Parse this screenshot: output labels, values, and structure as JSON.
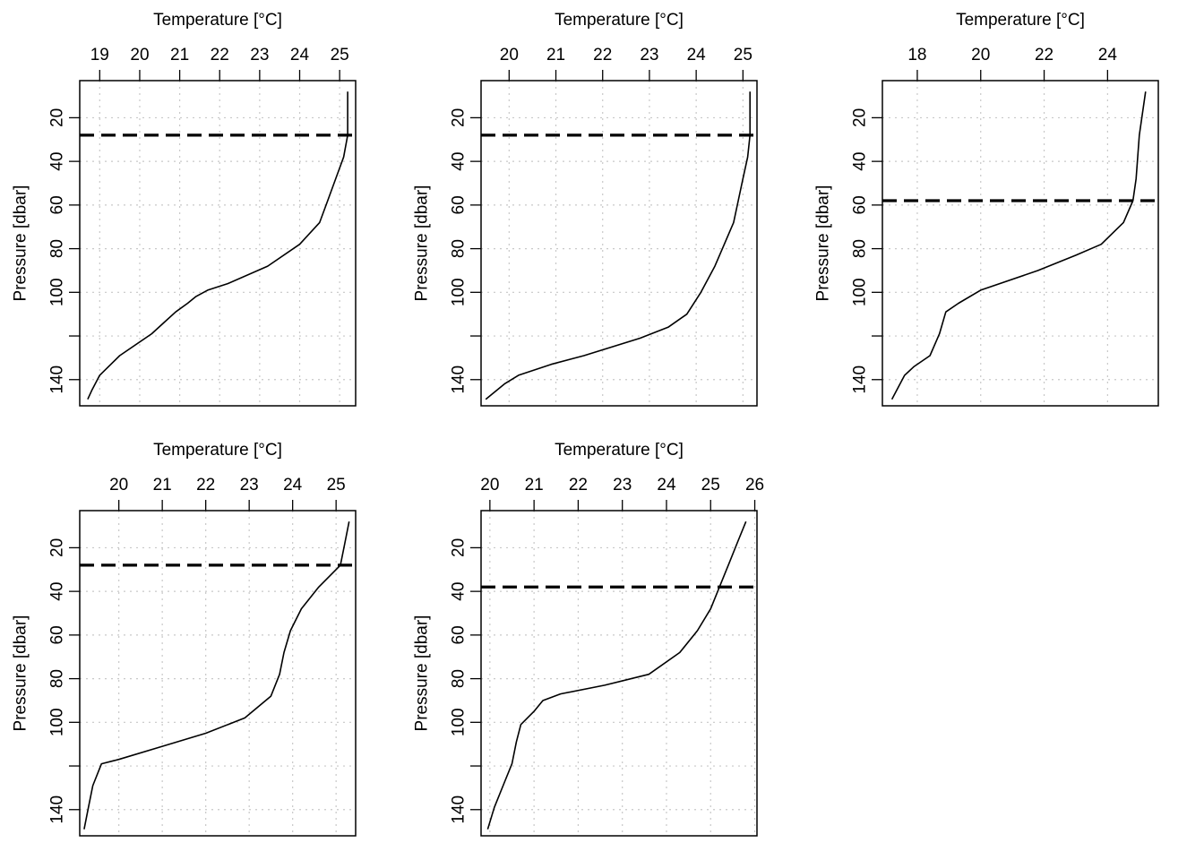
{
  "chart_data": [
    {
      "type": "line",
      "xlabel": "Temperature [°C]",
      "ylabel": "Pressure [dbar]",
      "xlim": [
        18.5,
        25.4
      ],
      "ylim": [
        152,
        3
      ],
      "xticks": [
        19,
        20,
        21,
        22,
        23,
        24,
        25
      ],
      "yticks": [
        20,
        40,
        60,
        80,
        100,
        140
      ],
      "ygrid": [
        20,
        40,
        60,
        80,
        100,
        120,
        140
      ],
      "grid": true,
      "mixed_layer_depth": 28,
      "profile": [
        [
          25.2,
          8
        ],
        [
          25.2,
          18
        ],
        [
          25.2,
          28
        ],
        [
          25.1,
          38
        ],
        [
          24.9,
          48
        ],
        [
          24.7,
          58
        ],
        [
          24.5,
          68
        ],
        [
          24.0,
          78
        ],
        [
          23.2,
          88
        ],
        [
          22.2,
          96
        ],
        [
          21.7,
          99
        ],
        [
          21.4,
          102
        ],
        [
          21.2,
          105
        ],
        [
          20.9,
          109
        ],
        [
          20.6,
          114
        ],
        [
          20.3,
          119
        ],
        [
          19.5,
          129
        ],
        [
          19.0,
          138
        ],
        [
          18.8,
          145
        ],
        [
          18.7,
          149
        ]
      ]
    },
    {
      "type": "line",
      "xlabel": "Temperature [°C]",
      "ylabel": "Pressure [dbar]",
      "xlim": [
        19.4,
        25.3
      ],
      "ylim": [
        152,
        3
      ],
      "xticks": [
        20,
        21,
        22,
        23,
        24,
        25
      ],
      "yticks": [
        20,
        40,
        60,
        80,
        100,
        140
      ],
      "ygrid": [
        20,
        40,
        60,
        80,
        100,
        120,
        140
      ],
      "grid": true,
      "mixed_layer_depth": 28,
      "profile": [
        [
          25.15,
          8
        ],
        [
          25.15,
          18
        ],
        [
          25.15,
          28
        ],
        [
          25.1,
          38
        ],
        [
          25.0,
          48
        ],
        [
          24.9,
          58
        ],
        [
          24.8,
          68
        ],
        [
          24.6,
          78
        ],
        [
          24.4,
          88
        ],
        [
          24.1,
          100
        ],
        [
          23.8,
          110
        ],
        [
          23.4,
          116
        ],
        [
          22.8,
          121
        ],
        [
          21.6,
          129
        ],
        [
          20.9,
          133
        ],
        [
          20.2,
          138
        ],
        [
          19.9,
          142
        ],
        [
          19.5,
          149
        ]
      ]
    },
    {
      "type": "line",
      "xlabel": "Temperature [°C]",
      "ylabel": "Pressure [dbar]",
      "xlim": [
        16.9,
        25.6
      ],
      "ylim": [
        152,
        3
      ],
      "xticks": [
        18,
        20,
        22,
        24
      ],
      "yticks": [
        20,
        40,
        60,
        80,
        100,
        140
      ],
      "ygrid": [
        20,
        40,
        60,
        80,
        100,
        120,
        140
      ],
      "grid": true,
      "mixed_layer_depth": 58,
      "profile": [
        [
          25.2,
          8
        ],
        [
          25.1,
          18
        ],
        [
          25.0,
          28
        ],
        [
          24.95,
          38
        ],
        [
          24.9,
          48
        ],
        [
          24.8,
          58
        ],
        [
          24.5,
          68
        ],
        [
          23.8,
          78
        ],
        [
          23.0,
          83
        ],
        [
          21.8,
          90
        ],
        [
          20.0,
          99
        ],
        [
          19.3,
          105
        ],
        [
          18.9,
          109
        ],
        [
          18.7,
          119
        ],
        [
          18.4,
          129
        ],
        [
          17.9,
          134
        ],
        [
          17.6,
          138
        ],
        [
          17.2,
          149
        ]
      ]
    },
    {
      "type": "line",
      "xlabel": "Temperature [°C]",
      "ylabel": "Pressure [dbar]",
      "xlim": [
        19.1,
        25.45
      ],
      "ylim": [
        152,
        3
      ],
      "xticks": [
        20,
        21,
        22,
        23,
        24,
        25
      ],
      "yticks": [
        20,
        40,
        60,
        80,
        100,
        140
      ],
      "ygrid": [
        20,
        40,
        60,
        80,
        100,
        120,
        140
      ],
      "grid": true,
      "mixed_layer_depth": 28,
      "profile": [
        [
          25.3,
          8
        ],
        [
          25.2,
          18
        ],
        [
          25.1,
          28
        ],
        [
          24.6,
          38
        ],
        [
          24.2,
          48
        ],
        [
          23.95,
          58
        ],
        [
          23.8,
          68
        ],
        [
          23.7,
          78
        ],
        [
          23.5,
          88
        ],
        [
          22.9,
          98
        ],
        [
          22.0,
          105
        ],
        [
          21.0,
          111
        ],
        [
          20.0,
          117
        ],
        [
          19.6,
          119
        ],
        [
          19.4,
          129
        ],
        [
          19.3,
          139
        ],
        [
          19.2,
          149
        ]
      ]
    },
    {
      "type": "line",
      "xlabel": "Temperature [°C]",
      "ylabel": "Pressure [dbar]",
      "xlim": [
        19.8,
        26.05
      ],
      "ylim": [
        152,
        3
      ],
      "xticks": [
        20,
        21,
        22,
        23,
        24,
        25,
        26
      ],
      "yticks": [
        20,
        40,
        60,
        80,
        100,
        140
      ],
      "ygrid": [
        20,
        40,
        60,
        80,
        100,
        120,
        140
      ],
      "grid": true,
      "mixed_layer_depth": 38,
      "profile": [
        [
          25.8,
          8
        ],
        [
          25.6,
          18
        ],
        [
          25.4,
          28
        ],
        [
          25.2,
          38
        ],
        [
          25.0,
          48
        ],
        [
          24.7,
          58
        ],
        [
          24.3,
          68
        ],
        [
          23.6,
          78
        ],
        [
          22.6,
          83
        ],
        [
          21.6,
          87
        ],
        [
          21.2,
          90
        ],
        [
          21.0,
          95
        ],
        [
          20.7,
          101
        ],
        [
          20.6,
          109
        ],
        [
          20.5,
          119
        ],
        [
          20.3,
          129
        ],
        [
          20.1,
          139
        ],
        [
          19.95,
          149
        ]
      ]
    }
  ]
}
